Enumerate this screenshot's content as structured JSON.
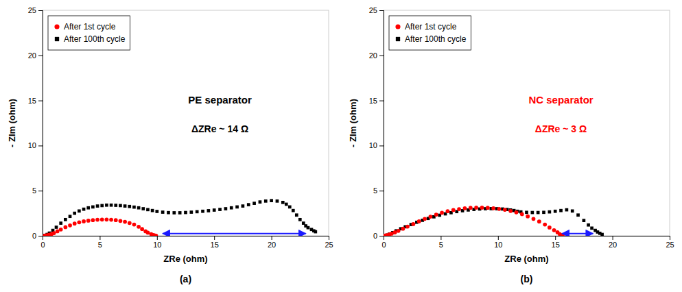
{
  "chart_data": [
    {
      "type": "scatter",
      "title": "(a)",
      "xlabel": "ZRe (ohm)",
      "ylabel": "- ZIm (ohm)",
      "legend": "upper left",
      "grid": false,
      "xlim": [
        0,
        25
      ],
      "ylim": [
        0,
        25
      ],
      "xticks": [
        0,
        5,
        10,
        15,
        20,
        25
      ],
      "yticks": [
        0,
        5,
        10,
        15,
        20,
        25
      ],
      "annotations": [
        {
          "text": "PE separator",
          "color": "black"
        },
        {
          "text": "ΔZRe ~ 14 Ω",
          "color": "black"
        },
        {
          "type": "arrow",
          "x": [
            10.5,
            23.0
          ],
          "y": 0.25,
          "color": "#1a1aff"
        }
      ],
      "series": [
        {
          "name": "After 1st cycle",
          "color": "red",
          "marker": "circle",
          "x": [
            0.2,
            0.4,
            0.6,
            0.8,
            1.0,
            1.3,
            1.6,
            2.0,
            2.4,
            2.8,
            3.2,
            3.6,
            4.0,
            4.4,
            4.8,
            5.2,
            5.6,
            6.0,
            6.4,
            6.8,
            7.2,
            7.6,
            8.0,
            8.4,
            8.7,
            9.0,
            9.2,
            9.5,
            9.7,
            9.85,
            9.92
          ],
          "values": [
            0.03,
            0.07,
            0.13,
            0.2,
            0.3,
            0.5,
            0.7,
            0.95,
            1.15,
            1.35,
            1.5,
            1.6,
            1.68,
            1.73,
            1.78,
            1.8,
            1.8,
            1.78,
            1.73,
            1.65,
            1.55,
            1.42,
            1.25,
            1.0,
            0.75,
            0.5,
            0.35,
            0.18,
            0.08,
            0.03,
            0.01
          ]
        },
        {
          "name": "After 100th cycle",
          "color": "black",
          "marker": "square",
          "x": [
            0.2,
            0.4,
            0.6,
            0.9,
            1.2,
            1.6,
            2.0,
            2.4,
            2.8,
            3.2,
            3.6,
            4.0,
            4.4,
            4.8,
            5.2,
            5.6,
            6.0,
            6.4,
            6.8,
            7.2,
            7.6,
            8.0,
            8.4,
            8.8,
            9.2,
            9.6,
            10.0,
            10.5,
            11.0,
            11.5,
            12.0,
            12.5,
            13.0,
            13.5,
            14.0,
            14.5,
            15.0,
            15.5,
            16.0,
            16.5,
            17.0,
            17.5,
            18.0,
            18.5,
            19.0,
            19.5,
            20.0,
            20.5,
            21.0,
            21.3,
            21.6,
            21.9,
            22.2,
            22.5,
            22.8,
            23.0,
            23.2,
            23.5,
            23.7,
            23.85
          ],
          "values": [
            0.05,
            0.15,
            0.3,
            0.6,
            0.95,
            1.4,
            1.8,
            2.15,
            2.5,
            2.75,
            2.95,
            3.1,
            3.2,
            3.3,
            3.35,
            3.4,
            3.4,
            3.38,
            3.35,
            3.3,
            3.25,
            3.18,
            3.1,
            3.0,
            2.9,
            2.8,
            2.7,
            2.62,
            2.57,
            2.55,
            2.55,
            2.58,
            2.62,
            2.67,
            2.72,
            2.78,
            2.85,
            2.92,
            3.0,
            3.1,
            3.2,
            3.3,
            3.45,
            3.6,
            3.75,
            3.85,
            3.9,
            3.85,
            3.7,
            3.5,
            3.2,
            2.8,
            2.3,
            1.8,
            1.4,
            1.1,
            0.9,
            0.7,
            0.55,
            0.45
          ]
        }
      ]
    },
    {
      "type": "scatter",
      "title": "(b)",
      "xlabel": "ZRe (ohm)",
      "ylabel": "- ZIm (ohm)",
      "legend": "upper left",
      "grid": false,
      "xlim": [
        0,
        25
      ],
      "ylim": [
        0,
        25
      ],
      "xticks": [
        0,
        5,
        10,
        15,
        20,
        25
      ],
      "yticks": [
        0,
        5,
        10,
        15,
        20,
        25
      ],
      "annotations": [
        {
          "text": "NC separator",
          "color": "red"
        },
        {
          "text": "ΔZRe ~ 3 Ω",
          "color": "red"
        },
        {
          "type": "arrow",
          "x": [
            15.6,
            18.3
          ],
          "y": 0.25,
          "color": "#1a1aff"
        }
      ],
      "series": [
        {
          "name": "After 1st cycle",
          "color": "red",
          "marker": "circle",
          "x": [
            0.15,
            0.3,
            0.5,
            0.7,
            1.0,
            1.3,
            1.7,
            2.1,
            2.6,
            3.1,
            3.6,
            4.1,
            4.6,
            5.1,
            5.6,
            6.1,
            6.6,
            7.1,
            7.6,
            8.1,
            8.6,
            9.1,
            9.6,
            10.1,
            10.6,
            11.1,
            11.6,
            12.1,
            12.6,
            13.1,
            13.6,
            14.1,
            14.5,
            14.9,
            15.2,
            15.4,
            15.55,
            15.65
          ],
          "values": [
            0.03,
            0.07,
            0.14,
            0.23,
            0.38,
            0.55,
            0.78,
            1.02,
            1.3,
            1.6,
            1.88,
            2.12,
            2.35,
            2.55,
            2.72,
            2.85,
            2.96,
            3.05,
            3.1,
            3.12,
            3.12,
            3.1,
            3.05,
            2.98,
            2.88,
            2.75,
            2.6,
            2.4,
            2.15,
            1.88,
            1.58,
            1.25,
            0.92,
            0.62,
            0.38,
            0.18,
            0.06,
            0.01
          ]
        },
        {
          "name": "After 100th cycle",
          "color": "black",
          "marker": "square",
          "x": [
            0.15,
            0.3,
            0.5,
            0.8,
            1.1,
            1.5,
            1.9,
            2.4,
            2.9,
            3.4,
            3.9,
            4.4,
            4.9,
            5.4,
            5.9,
            6.4,
            6.9,
            7.4,
            7.9,
            8.4,
            8.9,
            9.4,
            9.9,
            10.4,
            10.8,
            11.1,
            11.4,
            11.7,
            12.0,
            12.5,
            13.0,
            13.5,
            14.0,
            14.5,
            15.0,
            15.5,
            16.0,
            16.5,
            17.0,
            17.5,
            17.9,
            18.2,
            18.5,
            18.7,
            18.9,
            19.1
          ],
          "values": [
            0.03,
            0.08,
            0.18,
            0.35,
            0.55,
            0.78,
            1.0,
            1.25,
            1.5,
            1.72,
            1.92,
            2.1,
            2.28,
            2.43,
            2.56,
            2.68,
            2.78,
            2.86,
            2.92,
            2.97,
            3.0,
            3.01,
            3.0,
            2.97,
            2.92,
            2.86,
            2.8,
            2.72,
            2.65,
            2.6,
            2.58,
            2.58,
            2.6,
            2.65,
            2.72,
            2.8,
            2.88,
            2.75,
            2.3,
            1.7,
            1.2,
            0.85,
            0.6,
            0.42,
            0.28,
            0.15
          ]
        }
      ]
    }
  ]
}
